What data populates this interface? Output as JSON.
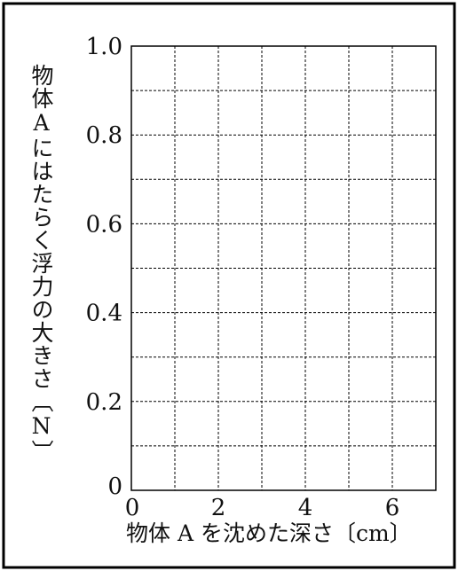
{
  "chart_data": {
    "type": "line",
    "title": "",
    "xlabel": "物体 A を沈めた深さ〔cm〕",
    "ylabel": "物体Aにはたらく浮力の大きさ〔N〕",
    "xlim": [
      0,
      7
    ],
    "ylim": [
      0,
      1.0
    ],
    "x_ticks": [
      "0",
      "2",
      "4",
      "6"
    ],
    "y_ticks": [
      "0",
      "0.2",
      "0.4",
      "0.6",
      "0.8",
      "1.0"
    ],
    "grid": true,
    "series": []
  }
}
